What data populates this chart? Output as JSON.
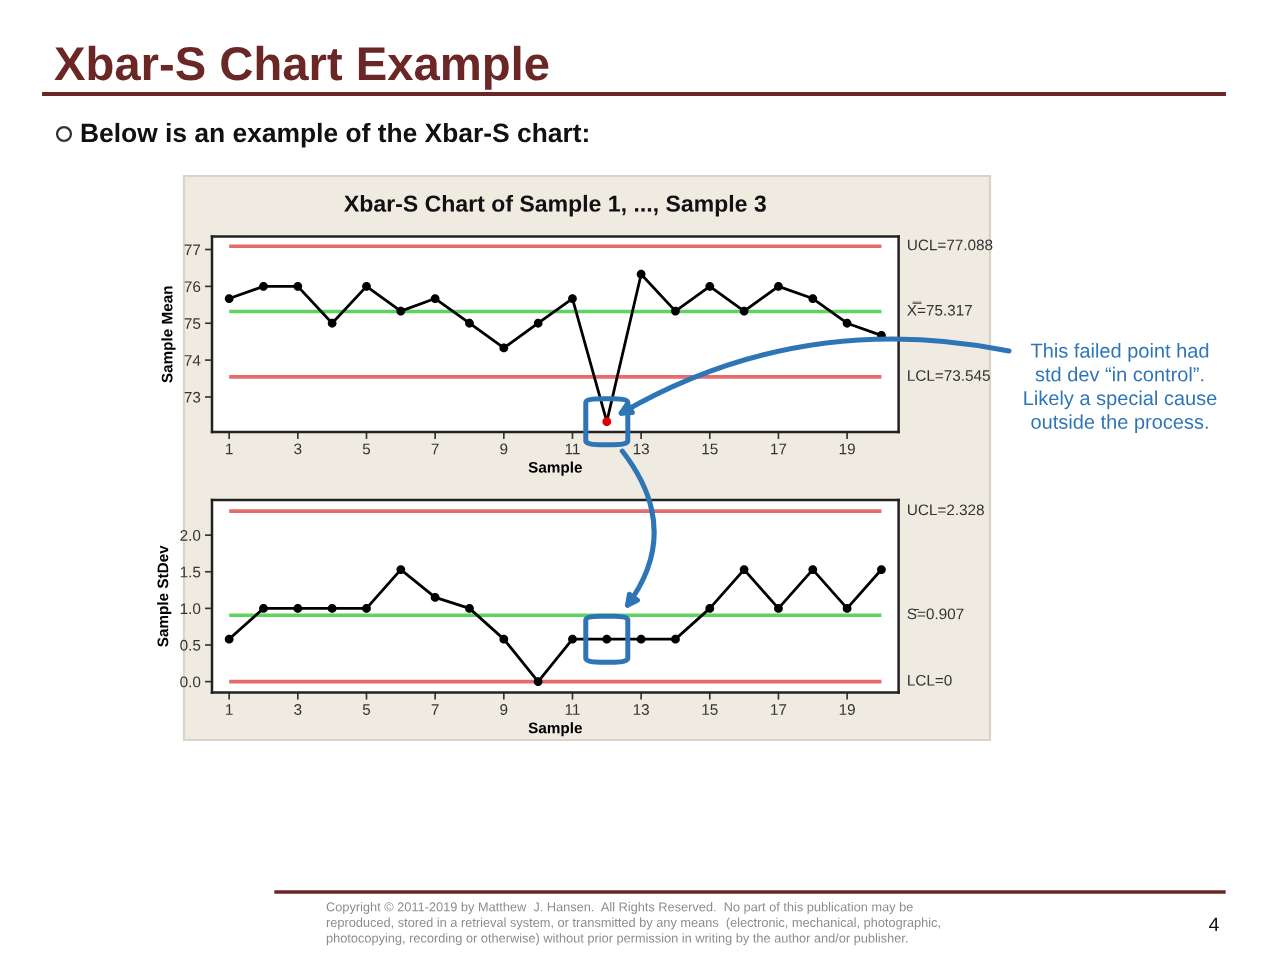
{
  "chart_data": [
    {
      "type": "line",
      "title": "Xbar-S Chart of Sample 1, ..., Sample 3",
      "xlabel": "Sample",
      "ylabel": "Sample Mean",
      "x": [
        1,
        2,
        3,
        4,
        5,
        6,
        7,
        8,
        9,
        10,
        11,
        12,
        13,
        14,
        15,
        16,
        17,
        18,
        19,
        20
      ],
      "series": [
        {
          "color": "#000000",
          "colors": [
            "#000000",
            "#000000",
            "#000000",
            "#000000",
            "#000000",
            "#000000",
            "#000000",
            "#000000",
            "#000000",
            "#000000",
            "#000000",
            "#e00000",
            "#000000",
            "#000000",
            "#000000",
            "#000000",
            "#000000",
            "#000000",
            "#000000",
            "#000000"
          ],
          "values": [
            75.67,
            76,
            76,
            75,
            76,
            75.33,
            75.67,
            75,
            74.33,
            75,
            75.67,
            72.33,
            76.33,
            75.33,
            76,
            75.33,
            76,
            75.67,
            75,
            74.67
          ]
        }
      ],
      "xlim": [
        0.5,
        20.5
      ],
      "xticks": [
        1,
        3,
        5,
        7,
        9,
        11,
        13,
        15,
        17,
        19
      ],
      "ylim": [
        72.05,
        77.35
      ],
      "yticks": [
        73,
        74,
        75,
        76,
        77
      ],
      "ref_lines": [
        {
          "axis": "y",
          "value": 77.088,
          "label": "UCL=77.088",
          "color": "#e46c6c"
        },
        {
          "axis": "y",
          "value": 75.317,
          "label": "X̿=75.317",
          "color": "#5fd35f"
        },
        {
          "axis": "y",
          "value": 73.545,
          "label": "LCL=73.545",
          "color": "#e46c6c"
        }
      ],
      "marker": "circle",
      "line_style": "solid",
      "annotations": [
        "Xbar-S Chart Example",
        "Below is an example of the Xbar-S chart:",
        {
          "text": "This failed point had\nstd dev “in control”.\nLikely a special cause\noutside the process.",
          "x": 12,
          "y": 72.33
        },
        "Copyright © 2011-2019 by Matthew  J. Hansen.  All Rights Reserved.  No part of this publication may be\nreproduced, stored in a retrieval system, or transmitted by any means  (electronic, mechanical, photographic,\nphotocopying, recording or otherwise) without prior permission in writing by the author and/or publisher.",
        "4"
      ]
    },
    {
      "type": "line",
      "xlabel": "Sample",
      "ylabel": "Sample StDev",
      "x": [
        1,
        2,
        3,
        4,
        5,
        6,
        7,
        8,
        9,
        10,
        11,
        12,
        13,
        14,
        15,
        16,
        17,
        18,
        19,
        20
      ],
      "series": [
        {
          "color": "#000000",
          "values": [
            0.58,
            1,
            1,
            1,
            1,
            1.53,
            1.15,
            1,
            0.58,
            0,
            0.58,
            0.58,
            0.58,
            0.58,
            1,
            1.53,
            1,
            1.53,
            1,
            1.53
          ]
        }
      ],
      "xlim": [
        0.5,
        20.5
      ],
      "xticks": [
        1,
        3,
        5,
        7,
        9,
        11,
        13,
        15,
        17,
        19
      ],
      "ylim": [
        -0.15,
        2.48
      ],
      "yticks": [
        {
          "value": 0,
          "label": "0.0"
        },
        {
          "value": 0.5,
          "label": "0.5"
        },
        {
          "value": 1,
          "label": "1.0"
        },
        {
          "value": 1.5,
          "label": "1.5"
        },
        {
          "value": 2,
          "label": "2.0"
        }
      ],
      "ref_lines": [
        {
          "axis": "y",
          "value": 2.328,
          "label": "UCL=2.328",
          "color": "#e46c6c"
        },
        {
          "axis": "y",
          "value": 0.907,
          "label": "S̄=0.907",
          "color": "#5fd35f"
        },
        {
          "axis": "y",
          "value": 0,
          "label": "LCL=0",
          "color": "#e46c6c"
        }
      ],
      "marker": "circle",
      "line_style": "solid"
    }
  ]
}
